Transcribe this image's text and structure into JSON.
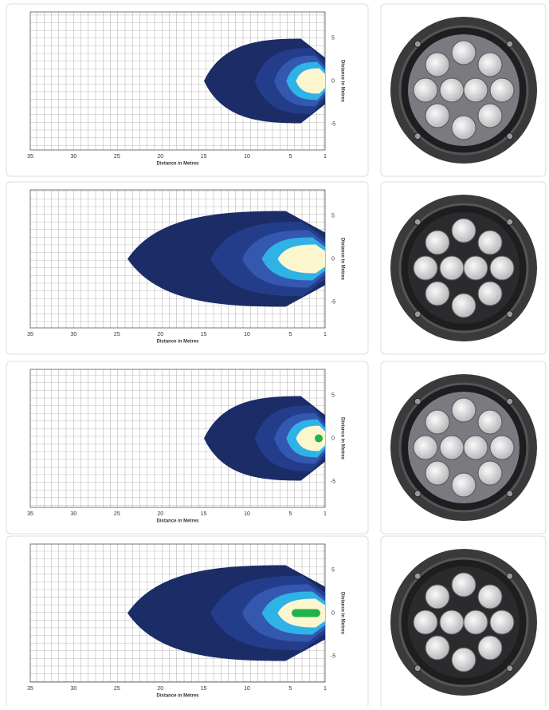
{
  "axis": {
    "xticks": [
      35,
      30,
      25,
      20,
      15,
      10,
      5,
      1
    ],
    "yticks": [
      5,
      0,
      -5
    ],
    "xlabel": "Distance in Metres",
    "ylabel": "Distance in Metres"
  },
  "panels": [
    {
      "beam": "narrow"
    },
    {
      "beam": "wide"
    },
    {
      "beam": "narrow"
    },
    {
      "beam": "wide"
    }
  ]
}
